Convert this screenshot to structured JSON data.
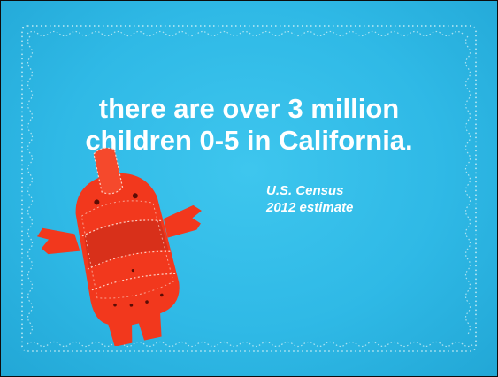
{
  "slide": {
    "headline": {
      "line1": "there are over 3 million",
      "line2": "children 0-5 in California."
    },
    "source": {
      "line1": "U.S. Census",
      "line2": "2012 estimate"
    },
    "illustration": "red-felt-figure",
    "colors": {
      "background": "#2fb9e6",
      "text": "#ffffff",
      "figure": "#f2381d",
      "stitching": "#d8f2f7"
    }
  }
}
